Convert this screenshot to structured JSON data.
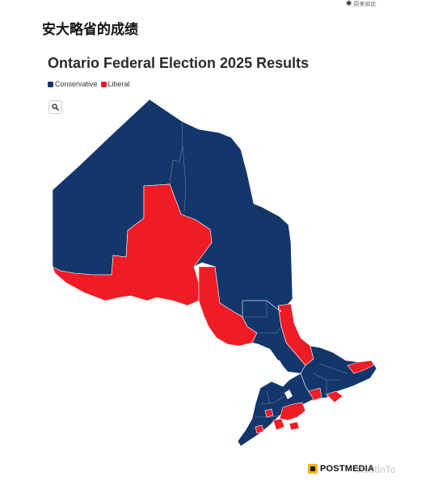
{
  "header": {
    "badge_icon": "asterisk-icon",
    "badge_text": "原来如此",
    "article_heading": "安大略省的成绩"
  },
  "map": {
    "title": "Ontario Federal Election 2025 Results",
    "legend": [
      {
        "label": "Conservative",
        "color": "#13366b"
      },
      {
        "label": "Liberal",
        "color": "#ee1c25"
      }
    ],
    "search_icon": "search-icon",
    "border_color": "#ffffff"
  },
  "footer": {
    "credit_logo_icon": "postmedia-logo-icon",
    "credit_text": "POSTMEDIA",
    "watermark": "MeetInTo"
  }
}
